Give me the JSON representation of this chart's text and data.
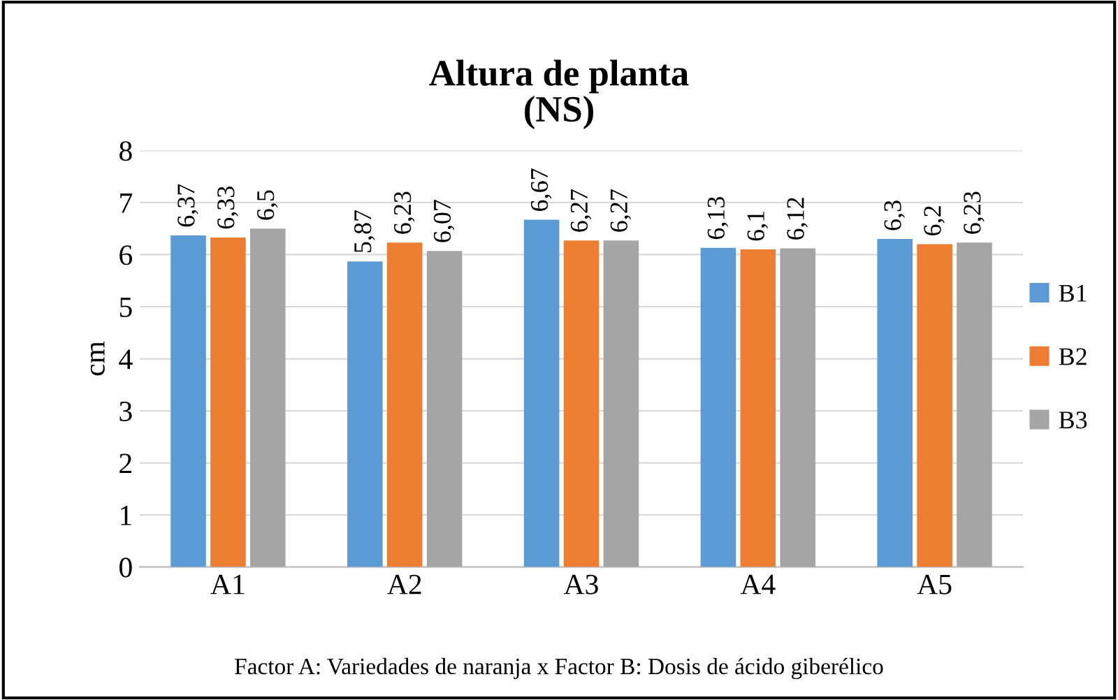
{
  "chart_data": {
    "type": "bar",
    "title": "Altura de planta\n(NS)",
    "ylabel": "cm",
    "categories": [
      "A1",
      "A2",
      "A3",
      "A4",
      "A5"
    ],
    "series": [
      {
        "name": "B1",
        "color": "#5b9bd5",
        "values": [
          6.37,
          5.87,
          6.67,
          6.13,
          6.3
        ],
        "value_labels": [
          "6,37",
          "5,87",
          "6,67",
          "6,13",
          "6,3"
        ]
      },
      {
        "name": "B2",
        "color": "#ed7d31",
        "values": [
          6.33,
          6.23,
          6.27,
          6.1,
          6.2
        ],
        "value_labels": [
          "6,33",
          "6,23",
          "6,27",
          "6,1",
          "6,2"
        ]
      },
      {
        "name": "B3",
        "color": "#a5a5a5",
        "values": [
          6.5,
          6.07,
          6.27,
          6.12,
          6.23
        ],
        "value_labels": [
          "6,5",
          "6,07",
          "6,27",
          "6,12",
          "6,23"
        ]
      }
    ],
    "ylim": [
      0,
      8
    ],
    "yticks": [
      0,
      1,
      2,
      3,
      4,
      5,
      6,
      7,
      8
    ],
    "grid": "y",
    "legend": "right",
    "annotations": [
      "Factor A: Variedades de naranja x Factor B: Dosis de ácido giberélico"
    ]
  }
}
